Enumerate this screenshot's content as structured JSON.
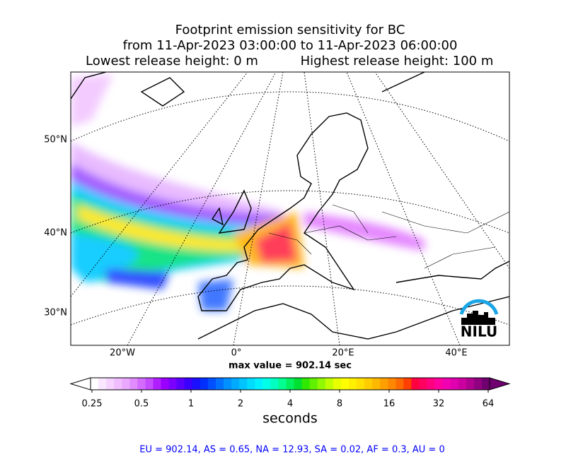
{
  "header": {
    "lines": [
      "Footprint emission sensitivity for BC",
      "from 11-Apr-2023 03:00:00 to 11-Apr-2023 06:00:00"
    ],
    "lowest": "Lowest release height: 0 m",
    "highest": "Highest release height: 100 m"
  },
  "map": {
    "lat_labels": [
      "50°N",
      "40°N",
      "30°N"
    ],
    "lon_labels": [
      "20°W",
      "0°",
      "20°E",
      "40°E"
    ],
    "logo": "NILU"
  },
  "max_value": "max value = 902.14 sec",
  "colorbar": {
    "ticks": [
      {
        "value": 0.25,
        "label": "0.25"
      },
      {
        "value": 0.5,
        "label": "0.5"
      },
      1,
      2,
      4,
      8,
      16,
      32,
      64
    ],
    "label": "seconds"
  },
  "footer": "EU = 902.14,  AS = 0.65,  NA = 12.93,  SA = 0.02,  AF = 0.3,  AU = 0"
}
